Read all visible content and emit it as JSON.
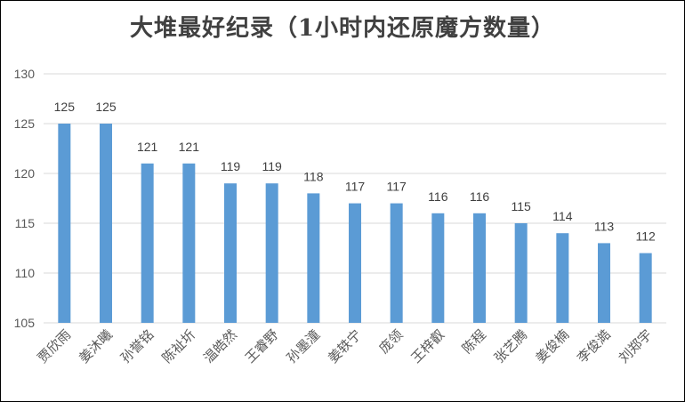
{
  "chart_data": {
    "type": "bar",
    "title": "大堆最好纪录（1小时内还原魔方数量）",
    "xlabel": "",
    "ylabel": "",
    "ylim": [
      105,
      130
    ],
    "yticks": [
      105,
      110,
      115,
      120,
      125,
      130
    ],
    "grid": true,
    "legend": "none",
    "bar_color": "#5B9BD5",
    "categories": [
      "贾欣雨",
      "姜沐曦",
      "孙誉铭",
      "陈祉圻",
      "温皓然",
      "王睿野",
      "孙墨潼",
      "姜轶宁",
      "庞领",
      "王梓叡",
      "陈程",
      "张艺腾",
      "姜俊楠",
      "李俊澔",
      "刘郑宇"
    ],
    "values": [
      125,
      125,
      121,
      121,
      119,
      119,
      118,
      117,
      117,
      116,
      116,
      115,
      114,
      113,
      112
    ]
  }
}
